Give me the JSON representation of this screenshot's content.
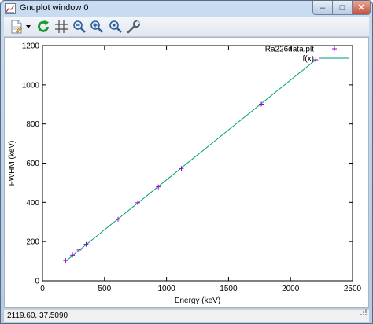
{
  "window": {
    "title": "Gnuplot window 0",
    "minimize_glyph": "–",
    "maximize_glyph": "□",
    "close_glyph": "✕"
  },
  "toolbar": {
    "items": [
      {
        "name": "copy-to-clipboard-icon"
      },
      {
        "name": "dropdown-arrow-icon"
      },
      {
        "name": "replot-icon"
      },
      {
        "name": "grid-icon"
      },
      {
        "name": "zoom-previous-icon"
      },
      {
        "name": "zoom-next-icon"
      },
      {
        "name": "autoscale-icon"
      },
      {
        "name": "options-wrench-icon"
      }
    ]
  },
  "status": {
    "coordinates": "2119.60,  37.5090"
  },
  "colors": {
    "points": "#9400d3",
    "fit_line": "#009e73",
    "axis": "#000000"
  },
  "chart_data": {
    "type": "scatter",
    "xlabel": "Energy (keV)",
    "ylabel": "FWHM (keV)",
    "xlim": [
      0,
      2500
    ],
    "ylim": [
      0,
      1200
    ],
    "x_ticks": [
      0,
      500,
      1000,
      1500,
      2000,
      2500
    ],
    "y_ticks": [
      0,
      200,
      400,
      600,
      800,
      1000,
      1200
    ],
    "x_tick_labels": [
      "0",
      "500",
      "1000",
      "1500",
      "2000",
      "2500"
    ],
    "y_tick_labels": [
      "0",
      "200",
      "400",
      "600",
      "800",
      "1000",
      "1200"
    ],
    "legend_position": "top-right",
    "series": [
      {
        "name": "Ra226data.plt",
        "style": "points",
        "x": [
          186,
          242,
          295,
          352,
          609,
          768,
          934,
          1120,
          1764,
          2204
        ],
        "y": [
          104,
          131,
          157,
          186,
          314,
          398,
          479,
          573,
          901,
          1128
        ]
      },
      {
        "name": "f(x)",
        "style": "line",
        "x": [
          186,
          2204
        ],
        "y": [
          100,
          1128
        ]
      }
    ]
  }
}
